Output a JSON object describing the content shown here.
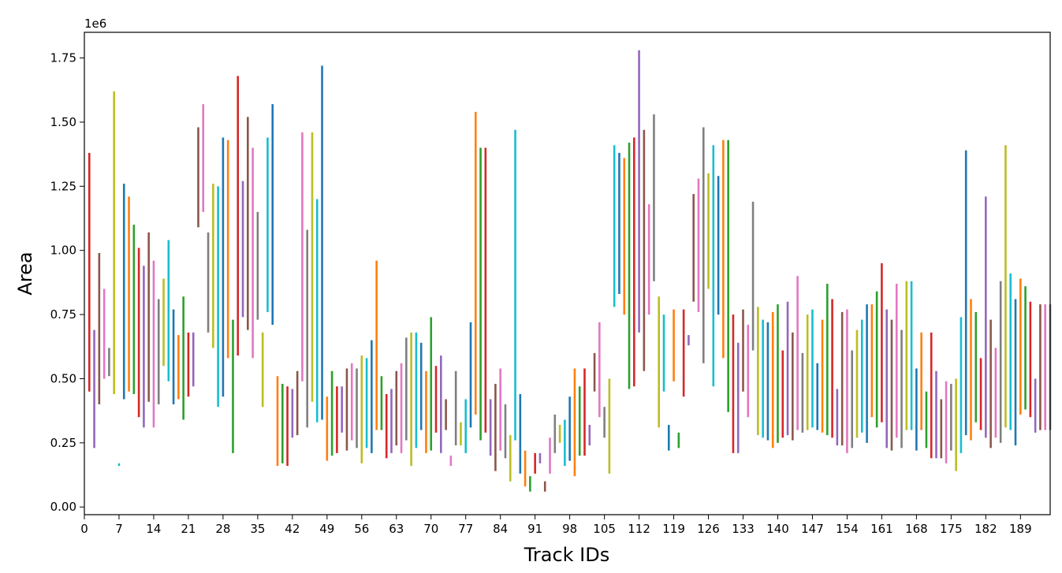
{
  "chart_data": {
    "type": "range-bar",
    "title": "",
    "xlabel": "Track IDs",
    "ylabel": "Area",
    "y_offset_text": "1e6",
    "xlim": [
      0,
      195
    ],
    "ylim": [
      -0.03,
      1.85
    ],
    "y_ticks": [
      0.0,
      0.25,
      0.5,
      0.75,
      1.0,
      1.25,
      1.5,
      1.75
    ],
    "y_tick_labels": [
      "0.00",
      "0.25",
      "0.50",
      "0.75",
      "1.00",
      "1.25",
      "1.50",
      "1.75"
    ],
    "x_ticks": [
      0,
      7,
      14,
      21,
      28,
      35,
      42,
      49,
      56,
      63,
      70,
      77,
      84,
      91,
      98,
      105,
      112,
      119,
      126,
      133,
      140,
      147,
      154,
      161,
      168,
      175,
      182,
      189
    ],
    "x_tick_labels": [
      "0",
      "7",
      "14",
      "21",
      "28",
      "35",
      "42",
      "49",
      "56",
      "63",
      "70",
      "77",
      "84",
      "91",
      "98",
      "105",
      "112",
      "119",
      "126",
      "133",
      "140",
      "147",
      "154",
      "161",
      "168",
      "175",
      "182",
      "189"
    ],
    "grid": false,
    "legend": "none",
    "colors": [
      "#1f77b4",
      "#ff7f0e",
      "#2ca02c",
      "#d62728",
      "#9467bd",
      "#8c564b",
      "#e377c2",
      "#7f7f7f",
      "#bcbd22",
      "#17becf"
    ],
    "color_start_index": 3,
    "ranges": [
      [
        0.45,
        1.38
      ],
      [
        0.23,
        0.69
      ],
      [
        0.4,
        0.99
      ],
      [
        0.5,
        0.85
      ],
      [
        0.51,
        0.62
      ],
      [
        0.44,
        1.62
      ],
      [
        0.16,
        0.17
      ],
      [
        0.42,
        1.26
      ],
      [
        0.45,
        1.21
      ],
      [
        0.44,
        1.1
      ],
      [
        0.35,
        1.01
      ],
      [
        0.31,
        0.94
      ],
      [
        0.41,
        1.07
      ],
      [
        0.31,
        0.96
      ],
      [
        0.4,
        0.81
      ],
      [
        0.55,
        0.89
      ],
      [
        0.49,
        1.04
      ],
      [
        0.4,
        0.77
      ],
      [
        0.42,
        0.67
      ],
      [
        0.34,
        0.82
      ],
      [
        0.43,
        0.68
      ],
      [
        0.47,
        0.68
      ],
      [
        1.09,
        1.48
      ],
      [
        1.15,
        1.57
      ],
      [
        0.68,
        1.07
      ],
      [
        0.62,
        1.26
      ],
      [
        0.39,
        1.25
      ],
      [
        0.43,
        1.44
      ],
      [
        0.58,
        1.43
      ],
      [
        0.21,
        0.73
      ],
      [
        0.59,
        1.68
      ],
      [
        0.74,
        1.27
      ],
      [
        0.69,
        1.52
      ],
      [
        0.58,
        1.4
      ],
      [
        0.73,
        1.15
      ],
      [
        0.39,
        0.68
      ],
      [
        0.76,
        1.44
      ],
      [
        0.71,
        1.57
      ],
      [
        0.16,
        0.51
      ],
      [
        0.17,
        0.48
      ],
      [
        0.16,
        0.47
      ],
      [
        0.27,
        0.46
      ],
      [
        0.28,
        0.53
      ],
      [
        0.49,
        1.46
      ],
      [
        0.31,
        1.08
      ],
      [
        0.41,
        1.46
      ],
      [
        0.33,
        1.2
      ],
      [
        0.34,
        1.72
      ],
      [
        0.18,
        0.43
      ],
      [
        0.2,
        0.53
      ],
      [
        0.21,
        0.47
      ],
      [
        0.29,
        0.47
      ],
      [
        0.22,
        0.54
      ],
      [
        0.26,
        0.56
      ],
      [
        0.23,
        0.54
      ],
      [
        0.17,
        0.59
      ],
      [
        0.23,
        0.58
      ],
      [
        0.21,
        0.65
      ],
      [
        0.3,
        0.96
      ],
      [
        0.3,
        0.51
      ],
      [
        0.19,
        0.44
      ],
      [
        0.21,
        0.46
      ],
      [
        0.24,
        0.53
      ],
      [
        0.21,
        0.56
      ],
      [
        0.26,
        0.66
      ],
      [
        0.16,
        0.68
      ],
      [
        0.23,
        0.68
      ],
      [
        0.3,
        0.64
      ],
      [
        0.21,
        0.53
      ],
      [
        0.22,
        0.74
      ],
      [
        0.29,
        0.55
      ],
      [
        0.21,
        0.59
      ],
      [
        0.3,
        0.42
      ],
      [
        0.16,
        0.2
      ],
      [
        0.24,
        0.53
      ],
      [
        0.24,
        0.33
      ],
      [
        0.21,
        0.42
      ],
      [
        0.31,
        0.72
      ],
      [
        0.36,
        1.54
      ],
      [
        0.26,
        1.4
      ],
      [
        0.29,
        1.4
      ],
      [
        0.2,
        0.42
      ],
      [
        0.14,
        0.48
      ],
      [
        0.22,
        0.54
      ],
      [
        0.19,
        0.4
      ],
      [
        0.1,
        0.28
      ],
      [
        0.26,
        1.47
      ],
      [
        0.13,
        0.44
      ],
      [
        0.08,
        0.22
      ],
      [
        0.06,
        0.12
      ],
      [
        0.13,
        0.21
      ],
      [
        0.17,
        0.21
      ],
      [
        0.06,
        0.1
      ],
      [
        0.13,
        0.27
      ],
      [
        0.21,
        0.36
      ],
      [
        0.25,
        0.32
      ],
      [
        0.16,
        0.34
      ],
      [
        0.18,
        0.43
      ],
      [
        0.12,
        0.54
      ],
      [
        0.2,
        0.47
      ],
      [
        0.2,
        0.54
      ],
      [
        0.24,
        0.32
      ],
      [
        0.45,
        0.6
      ],
      [
        0.35,
        0.72
      ],
      [
        0.27,
        0.39
      ],
      [
        0.13,
        0.5
      ],
      [
        0.78,
        1.41
      ],
      [
        0.83,
        1.38
      ],
      [
        0.75,
        1.36
      ],
      [
        0.46,
        1.42
      ],
      [
        0.47,
        1.44
      ],
      [
        0.68,
        1.78
      ],
      [
        0.53,
        1.47
      ],
      [
        0.75,
        1.18
      ],
      [
        0.88,
        1.53
      ],
      [
        0.31,
        0.82
      ],
      [
        0.45,
        0.75
      ],
      [
        0.22,
        0.32
      ],
      [
        0.49,
        0.77
      ],
      [
        0.23,
        0.29
      ],
      [
        0.43,
        0.77
      ],
      [
        0.63,
        0.67
      ],
      [
        0.8,
        1.22
      ],
      [
        0.76,
        1.28
      ],
      [
        0.56,
        1.48
      ],
      [
        0.85,
        1.3
      ],
      [
        0.47,
        1.41
      ],
      [
        0.75,
        1.29
      ],
      [
        0.58,
        1.43
      ],
      [
        0.37,
        1.43
      ],
      [
        0.21,
        0.75
      ],
      [
        0.21,
        0.64
      ],
      [
        0.45,
        0.77
      ],
      [
        0.35,
        0.71
      ],
      [
        0.61,
        1.19
      ],
      [
        0.28,
        0.78
      ],
      [
        0.27,
        0.73
      ],
      [
        0.26,
        0.72
      ],
      [
        0.23,
        0.76
      ],
      [
        0.25,
        0.79
      ],
      [
        0.27,
        0.61
      ],
      [
        0.28,
        0.8
      ],
      [
        0.26,
        0.68
      ],
      [
        0.3,
        0.9
      ],
      [
        0.29,
        0.6
      ],
      [
        0.3,
        0.75
      ],
      [
        0.31,
        0.77
      ],
      [
        0.3,
        0.56
      ],
      [
        0.29,
        0.73
      ],
      [
        0.28,
        0.87
      ],
      [
        0.27,
        0.81
      ],
      [
        0.24,
        0.46
      ],
      [
        0.24,
        0.76
      ],
      [
        0.21,
        0.77
      ],
      [
        0.23,
        0.61
      ],
      [
        0.27,
        0.69
      ],
      [
        0.29,
        0.73
      ],
      [
        0.25,
        0.79
      ],
      [
        0.35,
        0.79
      ],
      [
        0.31,
        0.84
      ],
      [
        0.33,
        0.95
      ],
      [
        0.23,
        0.77
      ],
      [
        0.22,
        0.73
      ],
      [
        0.27,
        0.87
      ],
      [
        0.23,
        0.69
      ],
      [
        0.3,
        0.88
      ],
      [
        0.3,
        0.88
      ],
      [
        0.22,
        0.54
      ],
      [
        0.3,
        0.68
      ],
      [
        0.23,
        0.45
      ],
      [
        0.19,
        0.68
      ],
      [
        0.19,
        0.53
      ],
      [
        0.19,
        0.42
      ],
      [
        0.17,
        0.49
      ],
      [
        0.22,
        0.48
      ],
      [
        0.14,
        0.5
      ],
      [
        0.21,
        0.74
      ],
      [
        0.28,
        1.39
      ],
      [
        0.26,
        0.81
      ],
      [
        0.33,
        0.76
      ],
      [
        0.3,
        0.58
      ],
      [
        0.27,
        1.21
      ],
      [
        0.23,
        0.73
      ],
      [
        0.27,
        0.62
      ],
      [
        0.25,
        0.88
      ],
      [
        0.31,
        1.41
      ],
      [
        0.3,
        0.91
      ],
      [
        0.24,
        0.81
      ],
      [
        0.36,
        0.89
      ],
      [
        0.38,
        0.86
      ],
      [
        0.35,
        0.8
      ],
      [
        0.29,
        0.5
      ],
      [
        0.3,
        0.79
      ],
      [
        0.3,
        0.79
      ],
      [
        0.3,
        0.79
      ]
    ]
  }
}
